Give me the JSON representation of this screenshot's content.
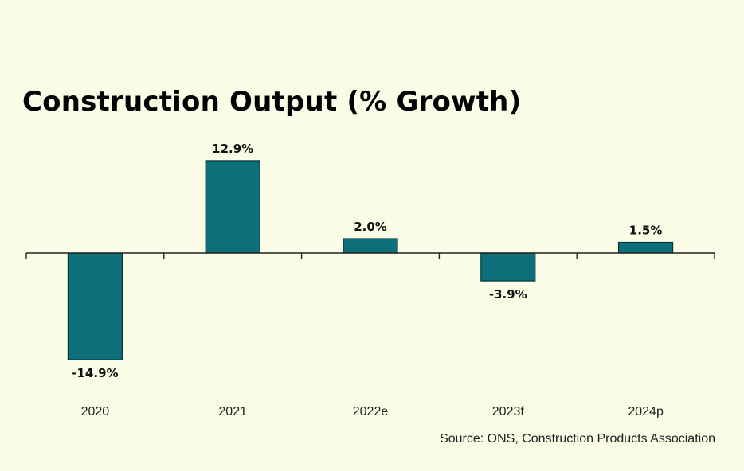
{
  "chart_data": {
    "type": "bar",
    "title": "Construction Output (% Growth)",
    "categories": [
      "2020",
      "2021",
      "2022e",
      "2023f",
      "2024p"
    ],
    "values": [
      -14.9,
      12.9,
      2.0,
      -3.9,
      1.5
    ],
    "value_labels": [
      "-14.9%",
      "12.9%",
      "2.0%",
      "-3.9%",
      "1.5%"
    ],
    "xlabel": "",
    "ylabel": "",
    "ylim": [
      -16,
      14
    ],
    "grid": false,
    "legend": "none",
    "colors": {
      "bar": "#0e6f7a",
      "background": "#fbfde6"
    }
  },
  "source": "Source: ONS, Construction Products Association"
}
